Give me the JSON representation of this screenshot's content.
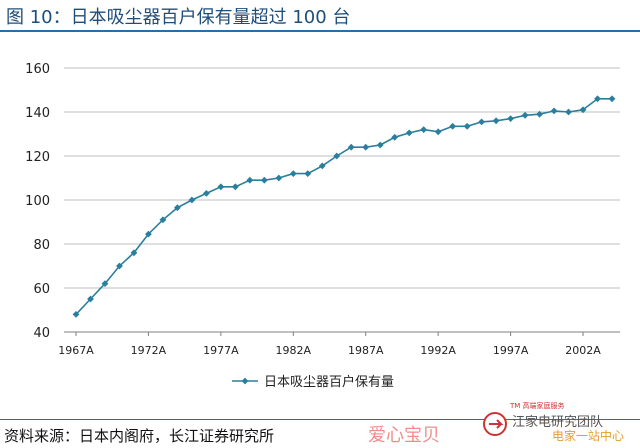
{
  "header": {
    "title": "图 10：日本吸尘器百户保有量超过 100 台"
  },
  "footer": {
    "source": "资料来源：日本内阁府，长江证券研究所"
  },
  "watermark": {
    "text": "爱心宝贝",
    "brand_small": "TM 高端家庭服务",
    "brand_name": "江家电研究团队",
    "brand_tag": "电家一站中心"
  },
  "colors": {
    "series": "#2a7f9e",
    "title": "#1f4e79",
    "rule": "#2e6da4",
    "grid": "#bfbfbf"
  },
  "chart_data": {
    "type": "line",
    "title": "",
    "xlabel": "",
    "ylabel": "",
    "ylim": [
      40,
      160
    ],
    "yticks": [
      40,
      60,
      80,
      100,
      120,
      140,
      160
    ],
    "grid": "horizontal",
    "legend_position": "bottom-center",
    "x_tick_labels": [
      "1967A",
      "1972A",
      "1977A",
      "1982A",
      "1987A",
      "1992A",
      "1997A",
      "2002A"
    ],
    "x": [
      1967,
      1968,
      1969,
      1970,
      1971,
      1972,
      1973,
      1974,
      1975,
      1976,
      1977,
      1978,
      1979,
      1980,
      1981,
      1982,
      1983,
      1984,
      1985,
      1986,
      1987,
      1988,
      1989,
      1990,
      1991,
      1992,
      1993,
      1994,
      1995,
      1996,
      1997,
      1998,
      1999,
      2000,
      2001,
      2002,
      2003,
      2004
    ],
    "series": [
      {
        "name": "日本吸尘器百户保有量",
        "values": [
          48,
          55,
          62,
          70,
          76,
          84.5,
          91,
          96.5,
          100,
          103,
          106,
          106,
          109,
          109,
          110,
          112,
          112,
          115.5,
          120,
          124,
          124,
          125,
          128.5,
          130.5,
          132,
          131,
          133.5,
          133.5,
          135.5,
          136,
          137,
          138.5,
          139,
          140.5,
          140,
          141,
          146,
          146
        ]
      }
    ]
  }
}
